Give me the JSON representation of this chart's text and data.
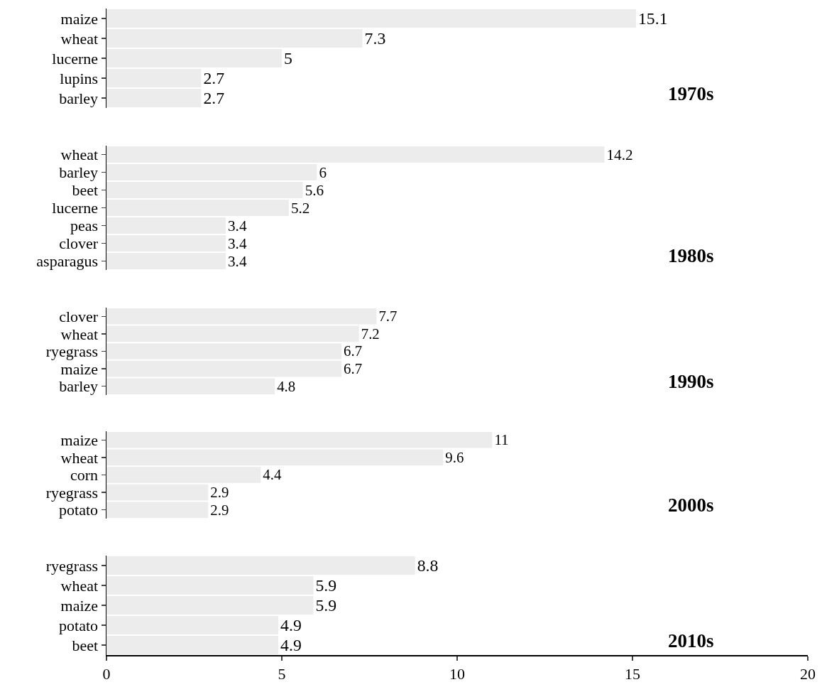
{
  "chart_data": [
    {
      "type": "bar",
      "orientation": "horizontal",
      "title": "1970s",
      "categories": [
        "maize",
        "wheat",
        "lucerne",
        "lupins",
        "barley"
      ],
      "values": [
        15.1,
        7.3,
        5,
        2.7,
        2.7
      ],
      "color": "#ececec",
      "data_labels": true,
      "xlim": [
        0,
        20
      ],
      "xticks": [
        0,
        5,
        10,
        15,
        20
      ],
      "tick_labels": "y"
    },
    {
      "type": "bar",
      "orientation": "horizontal",
      "title": "1980s",
      "categories": [
        "wheat",
        "barley",
        "beet",
        "lucerne",
        "peas",
        "clover",
        "asparagus"
      ],
      "values": [
        14.2,
        6,
        5.6,
        5.2,
        3.4,
        3.4,
        3.4
      ],
      "color": "#ececec",
      "data_labels": true,
      "xlim": [
        0,
        20
      ],
      "xticks": [
        0,
        5,
        10,
        15,
        20
      ],
      "tick_labels": "y"
    },
    {
      "type": "bar",
      "orientation": "horizontal",
      "title": "1990s",
      "categories": [
        "clover",
        "wheat",
        "ryegrass",
        "maize",
        "barley"
      ],
      "values": [
        7.7,
        7.2,
        6.7,
        6.7,
        4.8
      ],
      "color": "#ececec",
      "data_labels": true,
      "xlim": [
        0,
        20
      ],
      "xticks": [
        0,
        5,
        10,
        15,
        20
      ],
      "tick_labels": "y"
    },
    {
      "type": "bar",
      "orientation": "horizontal",
      "title": "2000s",
      "categories": [
        "maize",
        "wheat",
        "corn",
        "ryegrass",
        "potato"
      ],
      "values": [
        11,
        9.6,
        4.4,
        2.9,
        2.9
      ],
      "color": "#ececec",
      "data_labels": true,
      "xlim": [
        0,
        20
      ],
      "xticks": [
        0,
        5,
        10,
        15,
        20
      ],
      "tick_labels": "y"
    },
    {
      "type": "bar",
      "orientation": "horizontal",
      "title": "2010s",
      "categories": [
        "ryegrass",
        "wheat",
        "maize",
        "potato",
        "beet"
      ],
      "values": [
        8.8,
        5.9,
        5.9,
        4.9,
        4.9
      ],
      "color": "#ececec",
      "data_labels": true,
      "xlim": [
        0,
        20
      ],
      "xticks": [
        0,
        5,
        10,
        15,
        20
      ]
    }
  ]
}
